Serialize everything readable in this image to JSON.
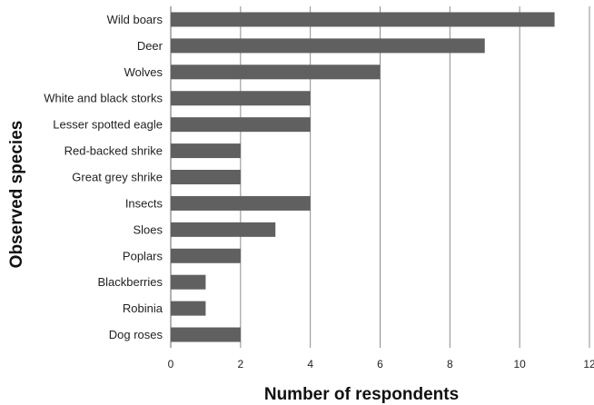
{
  "chart_data": {
    "type": "bar",
    "orientation": "horizontal",
    "categories": [
      "Wild boars",
      "Deer",
      "Wolves",
      "White and black storks",
      "Lesser spotted eagle",
      "Red-backed shrike",
      "Great grey shrike",
      "Insects",
      "Sloes",
      "Poplars",
      "Blackberries",
      "Robinia",
      "Dog roses"
    ],
    "values": [
      11,
      9,
      6,
      4,
      4,
      2,
      2,
      4,
      3,
      2,
      1,
      1,
      2
    ],
    "xlabel": "Number of respondents",
    "ylabel": "Observed species",
    "xlim": [
      0,
      12
    ],
    "xticks": [
      0,
      2,
      4,
      6,
      8,
      10,
      12
    ],
    "grid": "vertical",
    "bar_color": "#606060",
    "grid_color": "#8c8c8c"
  }
}
